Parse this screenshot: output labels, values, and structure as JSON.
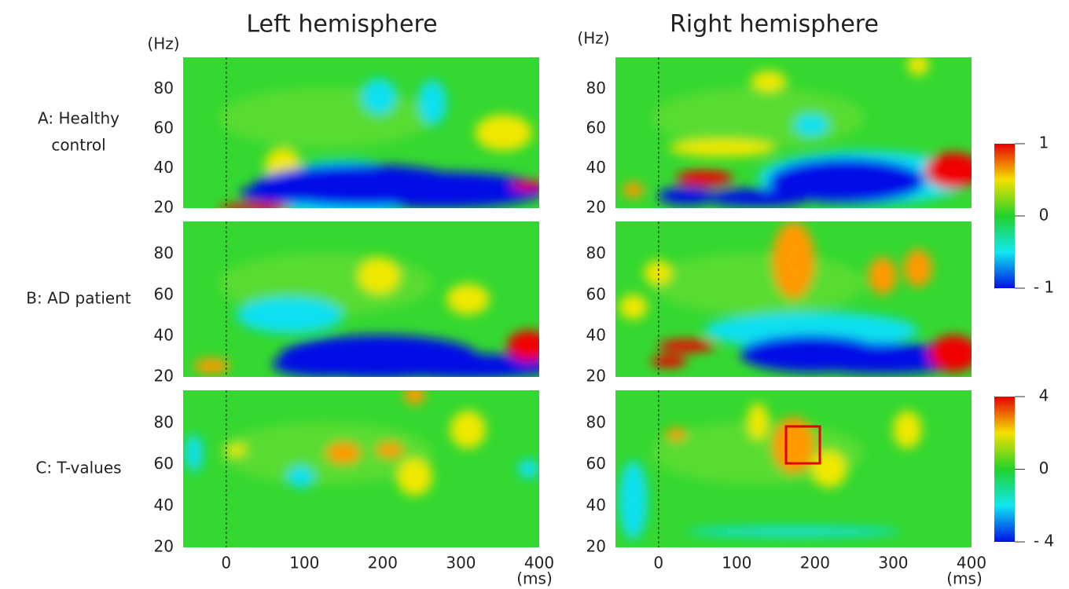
{
  "header": {
    "left_title": "Left hemisphere",
    "right_title": "Right hemisphere"
  },
  "axes": {
    "y_unit": "(Hz)",
    "x_unit": "(ms)",
    "yticks": [
      20,
      40,
      60,
      80
    ],
    "xticks": [
      0,
      100,
      200,
      300,
      400
    ],
    "ylim": [
      20,
      96
    ],
    "xlim": [
      -55,
      400
    ]
  },
  "rows": [
    {
      "label_lines": [
        "A: Healthy",
        "control"
      ]
    },
    {
      "label_lines": [
        "B: AD patient"
      ]
    },
    {
      "label_lines": [
        "C: T-values"
      ]
    }
  ],
  "colorbars": [
    {
      "ticks": [
        1,
        0,
        {
          "value": -1,
          "label": "- 1"
        }
      ]
    },
    {
      "ticks": [
        4,
        0,
        {
          "value": -4,
          "label": "- 4"
        }
      ]
    }
  ]
}
